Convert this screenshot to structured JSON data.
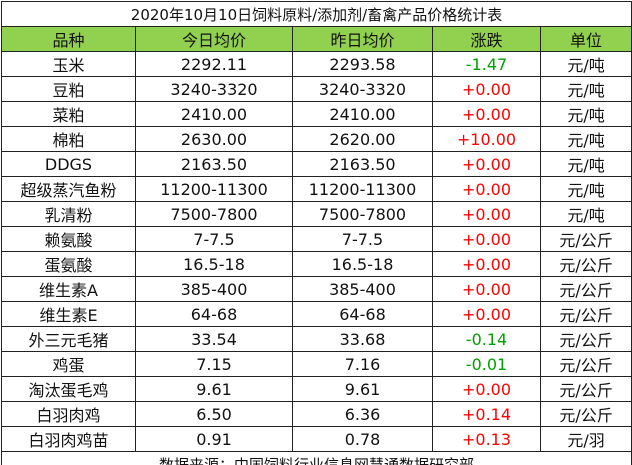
{
  "title": "2020年10月10日饲料原料/添加剂/畜禽产品价格统计表",
  "table": {
    "header": [
      "品种",
      "今日均价",
      "昨日均价",
      "涨跌",
      "单位"
    ],
    "rows": [
      [
        "玉米",
        "2292.11",
        "2293.58",
        "-1.47",
        "元/吨"
      ],
      [
        "豆粕",
        "3240-3320",
        "3240-3320",
        "+0.00",
        "元/吨"
      ],
      [
        "菜粕",
        "2410.00",
        "2410.00",
        "+0.00",
        "元/吨"
      ],
      [
        "棉粕",
        "2630.00",
        "2620.00",
        "+10.00",
        "元/吨"
      ],
      [
        "DDGS",
        "2163.50",
        "2163.50",
        "+0.00",
        "元/吨"
      ],
      [
        "超级蒸汽鱼粉",
        "11200-11300",
        "11200-11300",
        "+0.00",
        "元/吨"
      ],
      [
        "乳清粉",
        "7500-7800",
        "7500-7800",
        "+0.00",
        "元/吨"
      ],
      [
        "赖氨酸",
        "7-7.5",
        "7-7.5",
        "+0.00",
        "元/公斤"
      ],
      [
        "蛋氨酸",
        "16.5-18",
        "16.5-18",
        "+0.00",
        "元/公斤"
      ],
      [
        "维生素A",
        "385-400",
        "385-400",
        "+0.00",
        "元/公斤"
      ],
      [
        "维生素E",
        "64-68",
        "64-68",
        "+0.00",
        "元/公斤"
      ],
      [
        "外三元毛猪",
        "33.54",
        "33.68",
        "-0.14",
        "元/公斤"
      ],
      [
        "鸡蛋",
        "7.15",
        "7.16",
        "-0.01",
        "元/公斤"
      ],
      [
        "淘汰蛋毛鸡",
        "9.61",
        "9.61",
        "+0.00",
        "元/公斤"
      ],
      [
        "白羽肉鸡",
        "6.50",
        "6.36",
        "+0.14",
        "元/公斤"
      ],
      [
        "白羽肉鸡苗",
        "0.91",
        "0.78",
        "+0.13",
        "元/羽"
      ]
    ]
  },
  "footer": "数据来源：中国饲料行业信息网慧通数据研究部"
}
